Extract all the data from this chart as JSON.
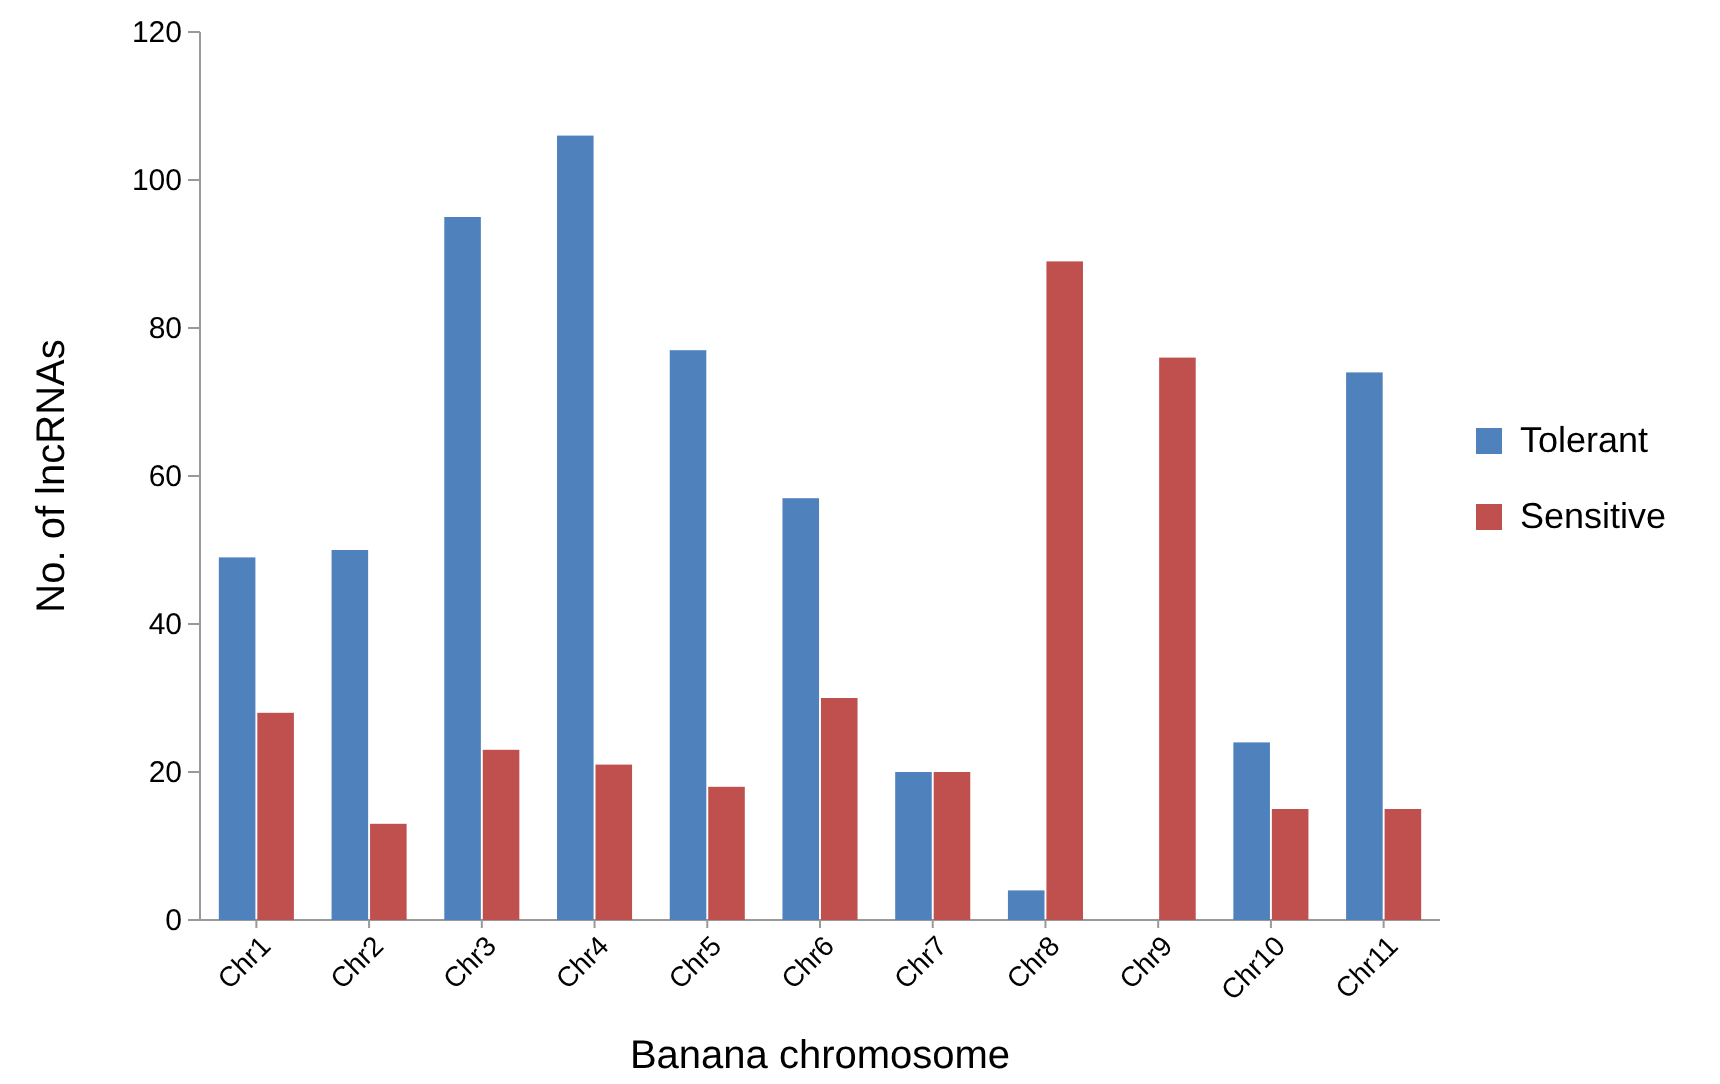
{
  "chart_data": {
    "type": "bar",
    "xlabel": "Banana chromosome",
    "ylabel": "No. of lncRNAs",
    "categories": [
      "Chr1",
      "Chr2",
      "Chr3",
      "Chr4",
      "Chr5",
      "Chr6",
      "Chr7",
      "Chr8",
      "Chr9",
      "Chr10",
      "Chr11"
    ],
    "series": [
      {
        "name": "Tolerant",
        "color": "#4f81bd",
        "values": [
          49,
          50,
          95,
          106,
          77,
          57,
          20,
          4,
          0,
          24,
          74
        ]
      },
      {
        "name": "Sensitive",
        "color": "#c0504d",
        "values": [
          28,
          13,
          23,
          21,
          18,
          30,
          20,
          89,
          76,
          15,
          15
        ]
      }
    ],
    "ylim": [
      0,
      120
    ],
    "yticks": [
      0,
      20,
      40,
      60,
      80,
      100,
      120
    ],
    "grid": false,
    "legend": "right"
  }
}
